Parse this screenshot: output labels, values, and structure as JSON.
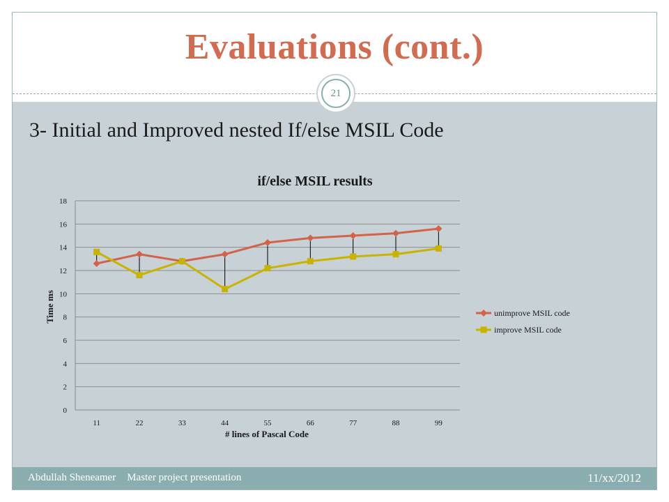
{
  "slide": {
    "title": "Evaluations (cont.)",
    "page_number": "21",
    "subtitle": "3- Initial and Improved nested If/else MSIL Code",
    "footer_author": "Abdullah Sheneamer",
    "footer_project": "Master project presentation",
    "footer_date": "11/xx/2012"
  },
  "colors": {
    "title": "#d26b4f",
    "content_band": "#c8d1d6",
    "footer_band": "#8aaeb0",
    "series_unimprove": "#d0634a",
    "series_improve": "#c8b400"
  },
  "chart_data": {
    "type": "line",
    "title": "if/else MSIL results",
    "xlabel": "# lines of Pascal Code",
    "ylabel": "Time ms",
    "categories": [
      "11",
      "22",
      "33",
      "44",
      "55",
      "66",
      "77",
      "88",
      "99"
    ],
    "ylim": [
      0,
      18
    ],
    "yticks": [
      "0",
      "2",
      "4",
      "6",
      "8",
      "10",
      "12",
      "14",
      "16",
      "18"
    ],
    "grid": true,
    "legend_position": "right",
    "drop_lines": true,
    "series": [
      {
        "name": "unimprove MSIL code",
        "marker": "diamond",
        "values": [
          12.6,
          13.4,
          12.8,
          13.4,
          14.4,
          14.8,
          15.0,
          15.2,
          15.6
        ]
      },
      {
        "name": "improve MSIL code",
        "marker": "square",
        "values": [
          13.6,
          11.6,
          12.8,
          10.4,
          12.2,
          12.8,
          13.2,
          13.4,
          13.9
        ]
      }
    ]
  }
}
